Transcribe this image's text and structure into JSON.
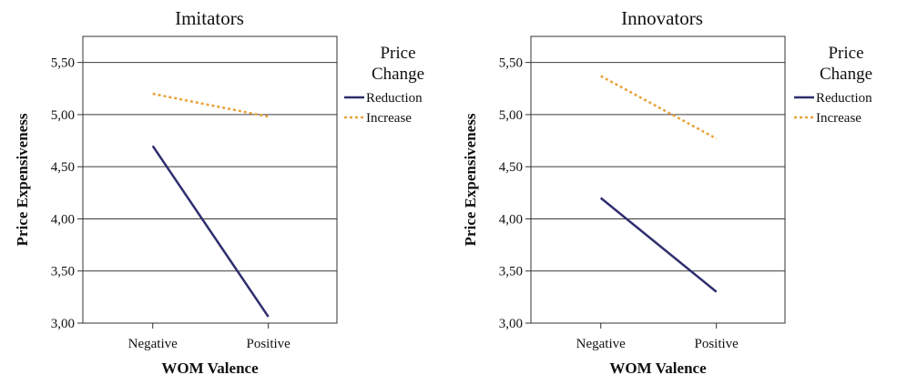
{
  "chart_data": [
    {
      "type": "line",
      "title": "Imitators",
      "xlabel": "WOM Valence",
      "ylabel": "Price Expensiveness",
      "categories": [
        "Negative",
        "Positive"
      ],
      "ylim": [
        3.0,
        5.75
      ],
      "yticks": [
        "3,00",
        "3,50",
        "4,00",
        "4,50",
        "5,00",
        "5,50"
      ],
      "grid": true,
      "legend": {
        "title_line1": "Price",
        "title_line2": "Change",
        "placement": "right"
      },
      "series": [
        {
          "name": "Reduction",
          "values": [
            4.7,
            3.06
          ],
          "color": "#2e2e6e",
          "style": "solid"
        },
        {
          "name": "Increase",
          "values": [
            5.2,
            4.98
          ],
          "color": "#e8a23a",
          "style": "dotted"
        }
      ]
    },
    {
      "type": "line",
      "title": "Innovators",
      "xlabel": "WOM Valence",
      "ylabel": "Price Expensiveness",
      "categories": [
        "Negative",
        "Positive"
      ],
      "ylim": [
        3.0,
        5.75
      ],
      "yticks": [
        "3,00",
        "3,50",
        "4,00",
        "4,50",
        "5,00",
        "5,50"
      ],
      "grid": true,
      "legend": {
        "title_line1": "Price",
        "title_line2": "Change",
        "placement": "right"
      },
      "series": [
        {
          "name": "Reduction",
          "values": [
            4.2,
            3.3
          ],
          "color": "#2e2e6e",
          "style": "solid"
        },
        {
          "name": "Increase",
          "values": [
            5.37,
            4.77
          ],
          "color": "#e8a23a",
          "style": "dotted"
        }
      ]
    }
  ]
}
